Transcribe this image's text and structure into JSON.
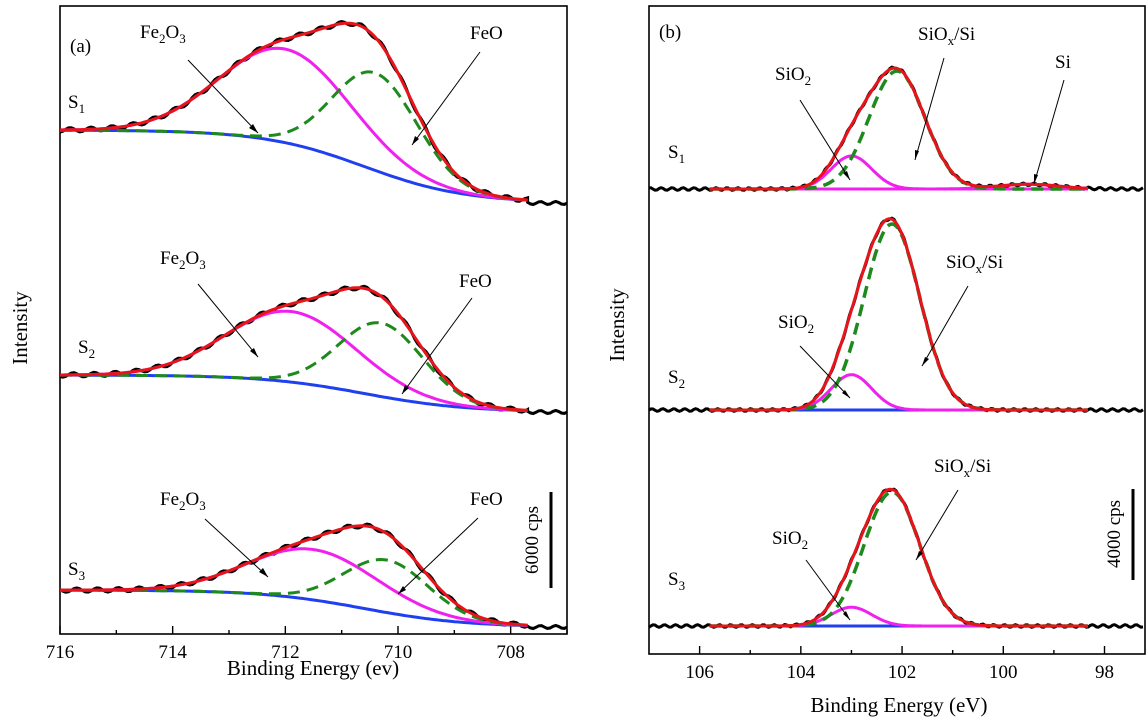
{
  "chart_data": [
    {
      "type": "line",
      "panel_label": "(a)",
      "xlabel": "Binding Energy (ev)",
      "ylabel": "Intensity",
      "xlim": [
        716,
        707
      ],
      "xticks": [
        "716",
        "714",
        "712",
        "710",
        "708"
      ],
      "xtick_values": [
        716,
        714,
        712,
        710,
        708
      ],
      "yticks_shown": false,
      "scale_bar": "6000 cps",
      "colors": {
        "raw": "#000000",
        "envelope": "#e8141b",
        "background": "#1f3ff0",
        "Fe2O3": "#f020ee",
        "FeO": "#1e8a1e"
      },
      "samples": [
        {
          "name": "S",
          "sub": "1",
          "peaks": [
            {
              "label": "Fe",
              "sub1": "2",
              "mid": "O",
              "sub2": "3",
              "center": 712.0,
              "height": 1.0
            },
            {
              "label": "FeO",
              "sub1": "",
              "mid": "",
              "sub2": "",
              "center": 710.4,
              "height": 1.0
            }
          ],
          "bg_high": 716.0,
          "bg_low": 708.0
        },
        {
          "name": "S",
          "sub": "2",
          "peaks": [
            {
              "label": "Fe",
              "sub1": "2",
              "mid": "O",
              "sub2": "3",
              "center": 711.9,
              "height": 0.75
            },
            {
              "label": "FeO",
              "sub1": "",
              "mid": "",
              "sub2": "",
              "center": 710.3,
              "height": 0.75
            }
          ]
        },
        {
          "name": "S",
          "sub": "3",
          "peaks": [
            {
              "label": "Fe",
              "sub1": "2",
              "mid": "O",
              "sub2": "3",
              "center": 711.5,
              "height": 0.55
            },
            {
              "label": "FeO",
              "sub1": "",
              "mid": "",
              "sub2": "",
              "center": 710.2,
              "height": 0.5
            }
          ]
        }
      ]
    },
    {
      "type": "line",
      "panel_label": "(b)",
      "xlabel": "Binding Energy (eV)",
      "ylabel": "Intensity",
      "xlim": [
        107,
        97.2
      ],
      "xticks": [
        "106",
        "104",
        "102",
        "100",
        "98"
      ],
      "xtick_values": [
        106,
        104,
        102,
        100,
        98
      ],
      "yticks_shown": false,
      "scale_bar": "4000 cps",
      "colors": {
        "raw": "#000000",
        "envelope": "#e8141b",
        "background": "#1f3ff0",
        "SiO2": "#f020ee",
        "SiOx_Si": "#1e8a1e"
      },
      "samples": [
        {
          "name": "S",
          "sub": "1",
          "peaks": [
            {
              "label": "SiO",
              "sub": "2",
              "center": 103.0,
              "height": 0.28
            },
            {
              "label": "SiO",
              "sub": "x",
              "suffix": "/Si",
              "center": 102.1,
              "height": 1.0
            },
            {
              "label": "Si",
              "sub": "",
              "center": 99.5,
              "height": 0.04
            }
          ]
        },
        {
          "name": "S",
          "sub": "2",
          "peaks": [
            {
              "label": "SiO",
              "sub": "2",
              "center": 103.0,
              "height": 0.19
            },
            {
              "label": "SiO",
              "sub": "x",
              "suffix": "/Si",
              "center": 102.2,
              "height": 1.0
            }
          ]
        },
        {
          "name": "S",
          "sub": "3",
          "peaks": [
            {
              "label": "SiO",
              "sub": "2",
              "center": 103.0,
              "height": 0.14
            },
            {
              "label": "SiO",
              "sub": "x",
              "suffix": "/Si",
              "center": 102.2,
              "height": 1.0
            }
          ]
        }
      ]
    }
  ]
}
